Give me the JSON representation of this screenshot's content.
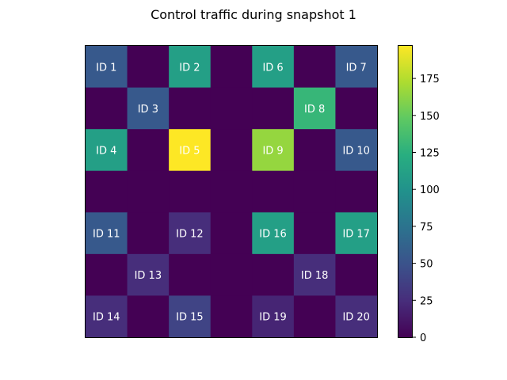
{
  "chart_data": {
    "type": "heatmap",
    "title": "Control traffic during snapshot 1",
    "xlabel": "",
    "ylabel": "",
    "colormap": "viridis",
    "vmin": 0,
    "vmax": 197,
    "colorbar_ticks": [
      "0",
      "25",
      "50",
      "75",
      "100",
      "125",
      "150",
      "175"
    ],
    "matrix": [
      [
        55,
        0,
        110,
        0,
        110,
        0,
        55
      ],
      [
        0,
        55,
        0,
        0,
        0,
        130,
        0
      ],
      [
        110,
        0,
        197,
        0,
        165,
        0,
        55
      ],
      [
        0,
        0,
        0,
        0,
        0,
        0,
        0
      ],
      [
        55,
        0,
        25,
        0,
        110,
        0,
        110
      ],
      [
        0,
        25,
        0,
        0,
        0,
        25,
        0
      ],
      [
        25,
        0,
        40,
        0,
        20,
        0,
        25
      ]
    ],
    "labels": [
      [
        "ID 1",
        "",
        "ID 2",
        "",
        "ID 6",
        "",
        "ID 7"
      ],
      [
        "",
        "ID 3",
        "",
        "",
        "",
        "ID 8",
        ""
      ],
      [
        "ID 4",
        "",
        "ID 5",
        "",
        "ID 9",
        "",
        "ID 10"
      ],
      [
        "",
        "",
        "",
        "",
        "",
        "",
        ""
      ],
      [
        "ID 11",
        "",
        "ID 12",
        "",
        "ID 16",
        "",
        "ID 17"
      ],
      [
        "",
        "ID 13",
        "",
        "",
        "",
        "ID 18",
        ""
      ],
      [
        "ID 14",
        "",
        "ID 15",
        "",
        "ID 19",
        "",
        "ID 20"
      ]
    ],
    "grid": false,
    "axes_ticks_visible": false
  }
}
